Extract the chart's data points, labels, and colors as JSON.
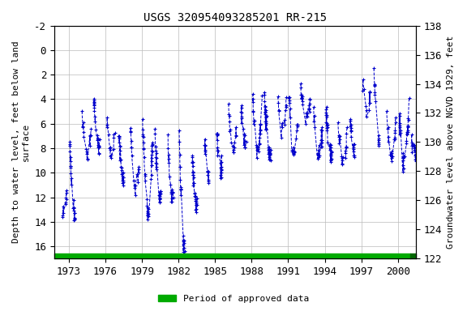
{
  "title": "USGS 320954093285201 RR-215",
  "ylabel_left": "Depth to water level, feet below land\nsurface",
  "ylabel_right": "Groundwater level above NGVD 1929, feet",
  "ylim_left": [
    17,
    -2
  ],
  "ylim_right": [
    122,
    138
  ],
  "xlim": [
    1971.8,
    2001.5
  ],
  "xticks": [
    1973,
    1976,
    1979,
    1982,
    1985,
    1988,
    1991,
    1994,
    1997,
    2000
  ],
  "yticks_left": [
    -2,
    0,
    2,
    4,
    6,
    8,
    10,
    12,
    14,
    16
  ],
  "yticks_right": [
    138,
    136,
    134,
    132,
    130,
    128,
    126,
    124,
    122
  ],
  "data_color": "#0000CC",
  "bar_color": "#00AA00",
  "legend_label": "Period of approved data",
  "background_color": "#ffffff",
  "grid_color": "#bbbbbb",
  "title_fontsize": 10,
  "label_fontsize": 8,
  "tick_fontsize": 9
}
